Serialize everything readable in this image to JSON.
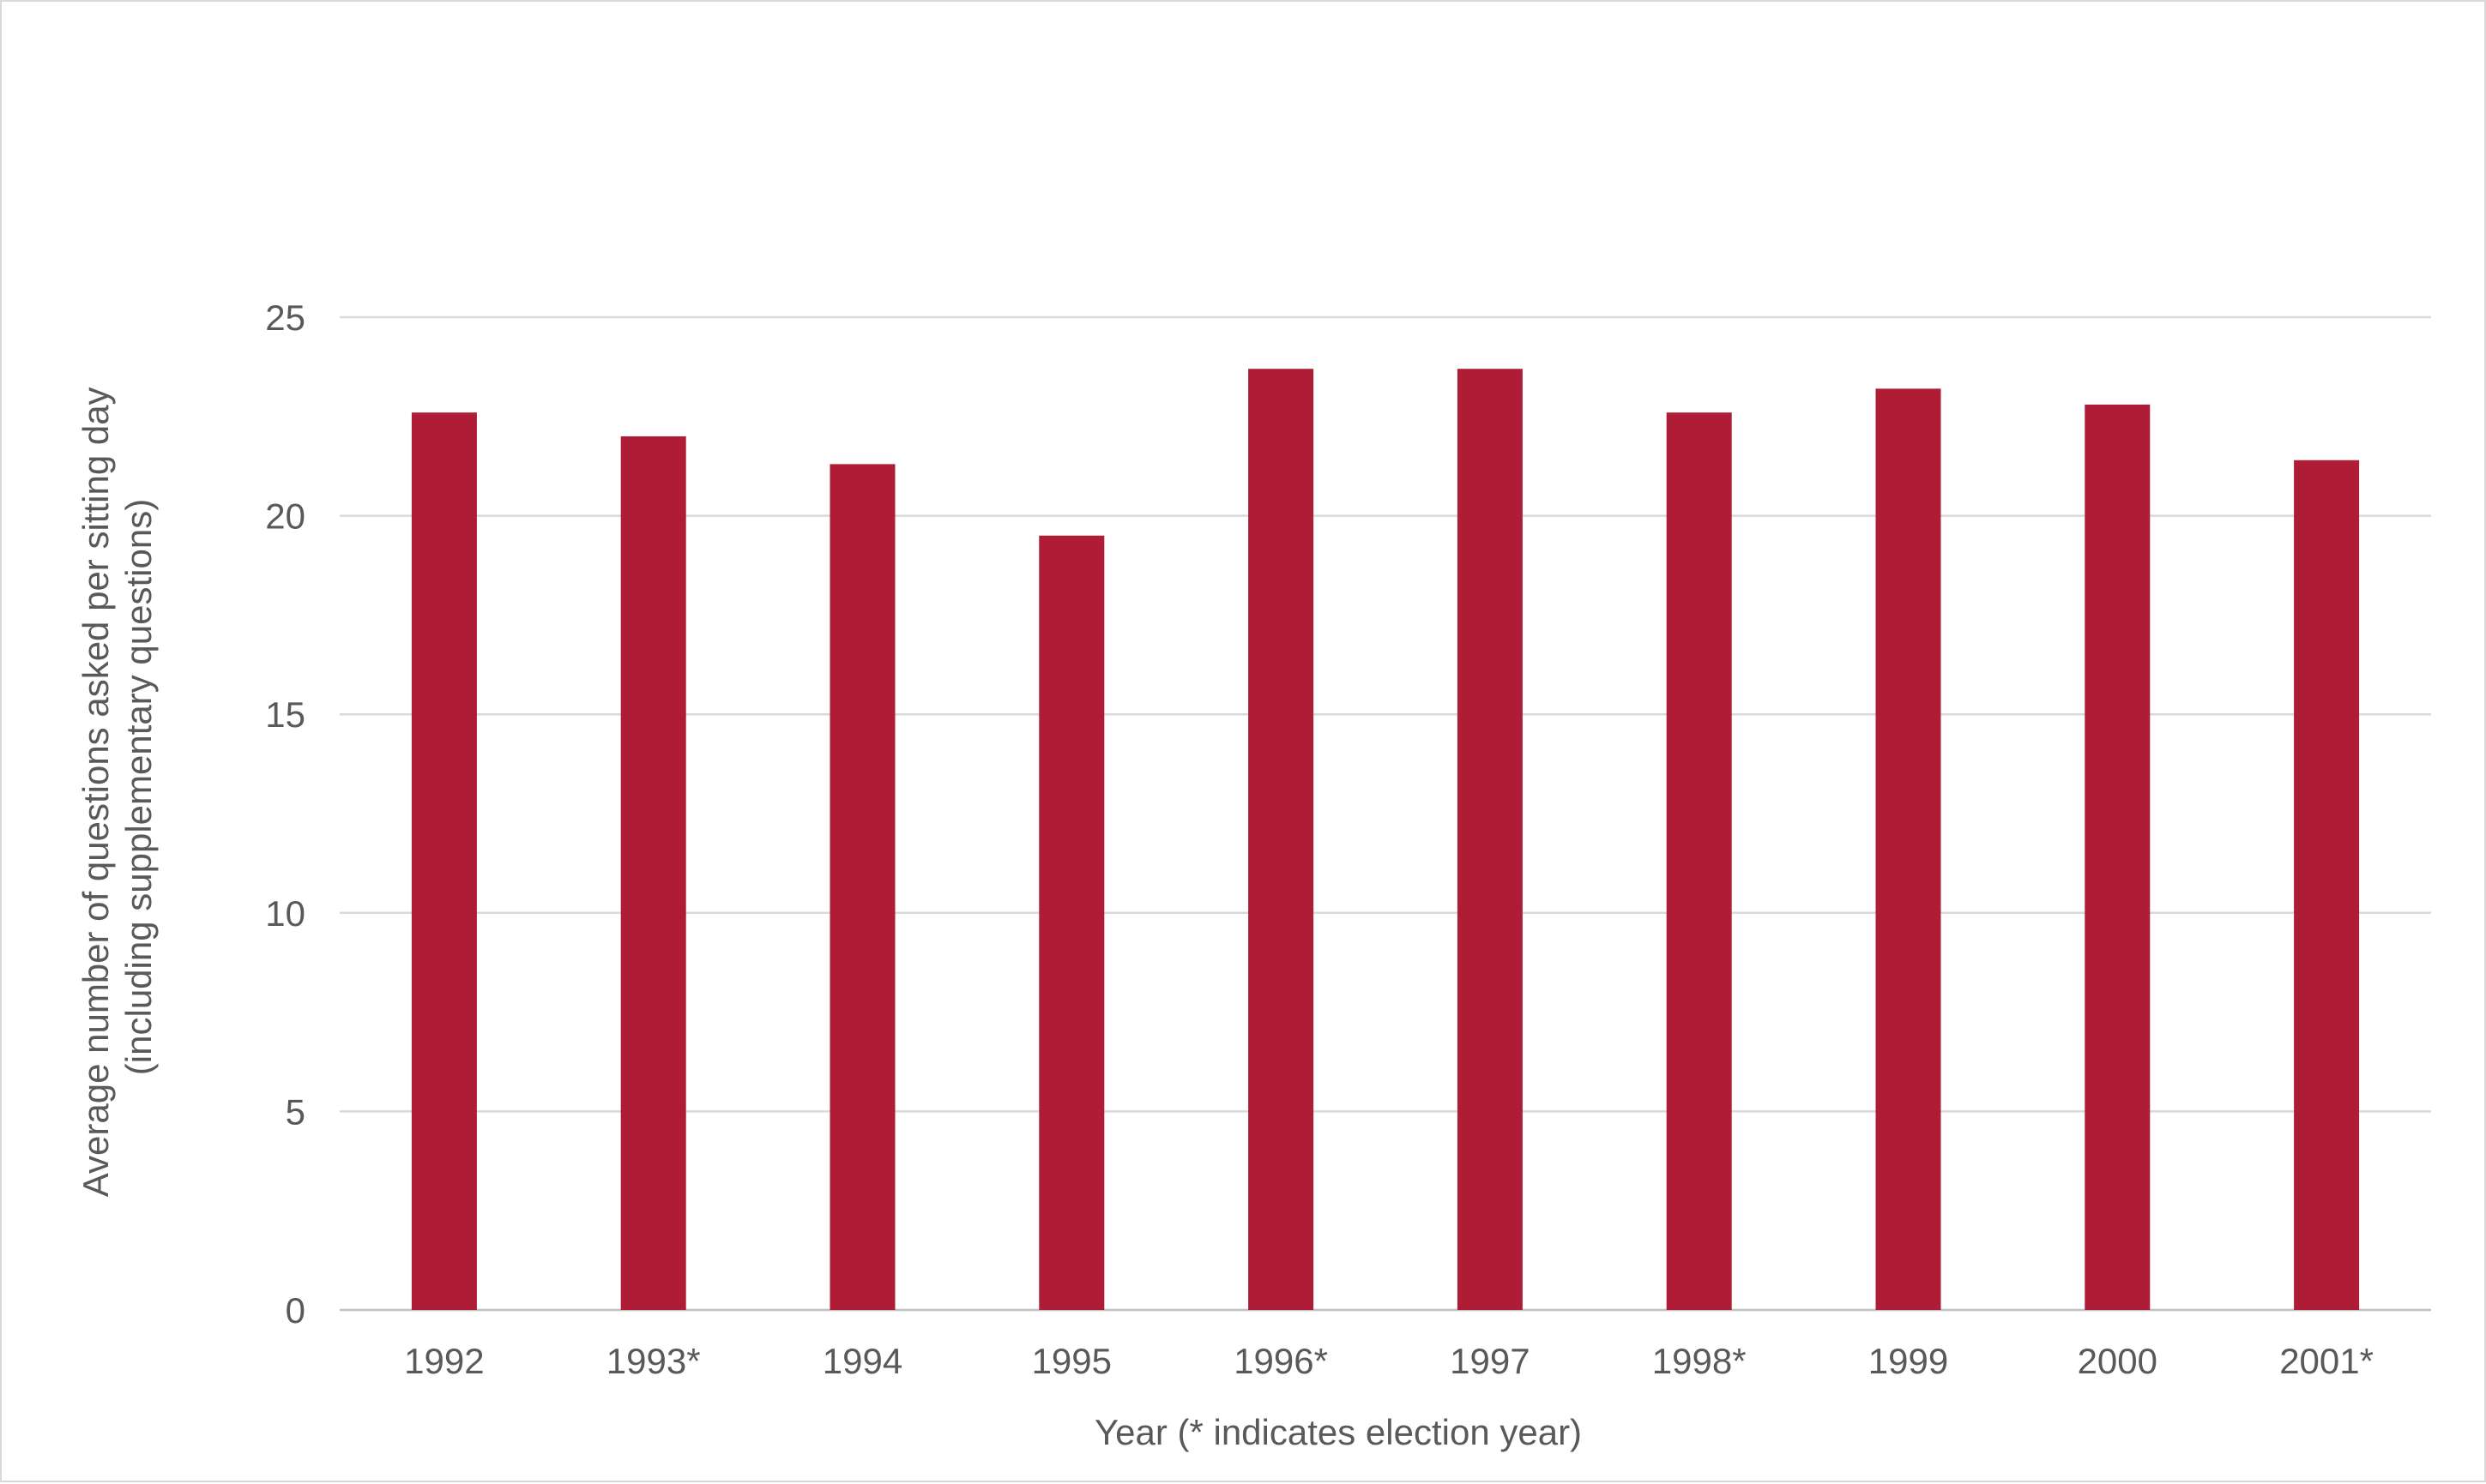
{
  "chart_data": {
    "type": "bar",
    "categories": [
      "1992",
      "1993*",
      "1994",
      "1995",
      "1996*",
      "1997",
      "1998*",
      "1999",
      "2000",
      "2001*"
    ],
    "values": [
      22.6,
      22.0,
      21.3,
      19.5,
      23.7,
      23.7,
      22.6,
      23.2,
      22.8,
      21.4
    ],
    "title": "",
    "xlabel": "Year (* indicates election year)",
    "ylabel_lines": [
      "Average number of questions asked per sitting day",
      "(including supplementary questions)"
    ],
    "ylim": [
      0,
      25
    ],
    "yticks": [
      "0",
      "5",
      "10",
      "15",
      "20",
      "25"
    ],
    "grid": true,
    "legend": "none",
    "bar_color": "#AE1C35",
    "grid_color": "#D9D9D9",
    "text_color": "#595959"
  }
}
